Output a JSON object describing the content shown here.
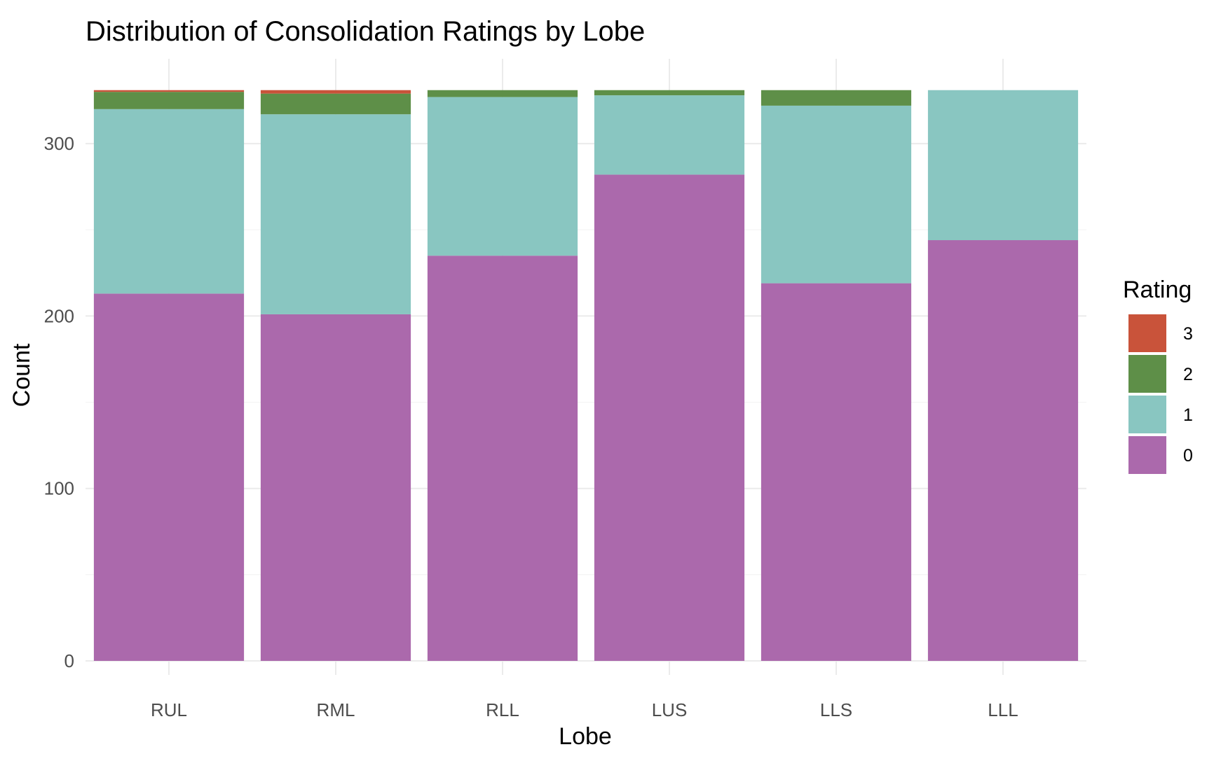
{
  "chart_data": {
    "type": "bar",
    "stacked": true,
    "title": "Distribution of Consolidation Ratings by Lobe",
    "xlabel": "Lobe",
    "ylabel": "Count",
    "categories": [
      "RUL",
      "RML",
      "RLL",
      "LUS",
      "LLS",
      "LLL"
    ],
    "ylim": [
      0,
      331
    ],
    "yticks": [
      0,
      100,
      200,
      300
    ],
    "grid": true,
    "legend": {
      "title": "Rating",
      "position": "right"
    },
    "series": [
      {
        "name": "0",
        "color": "#AB69AC",
        "values": [
          213,
          201,
          235,
          282,
          219,
          244
        ]
      },
      {
        "name": "1",
        "color": "#89C6C1",
        "values": [
          107,
          116,
          92,
          46,
          103,
          87
        ]
      },
      {
        "name": "2",
        "color": "#5E8F48",
        "values": [
          10,
          12,
          4,
          3,
          9,
          0
        ]
      },
      {
        "name": "3",
        "color": "#C9533A",
        "values": [
          1,
          2,
          0,
          0,
          0,
          0
        ]
      }
    ]
  }
}
